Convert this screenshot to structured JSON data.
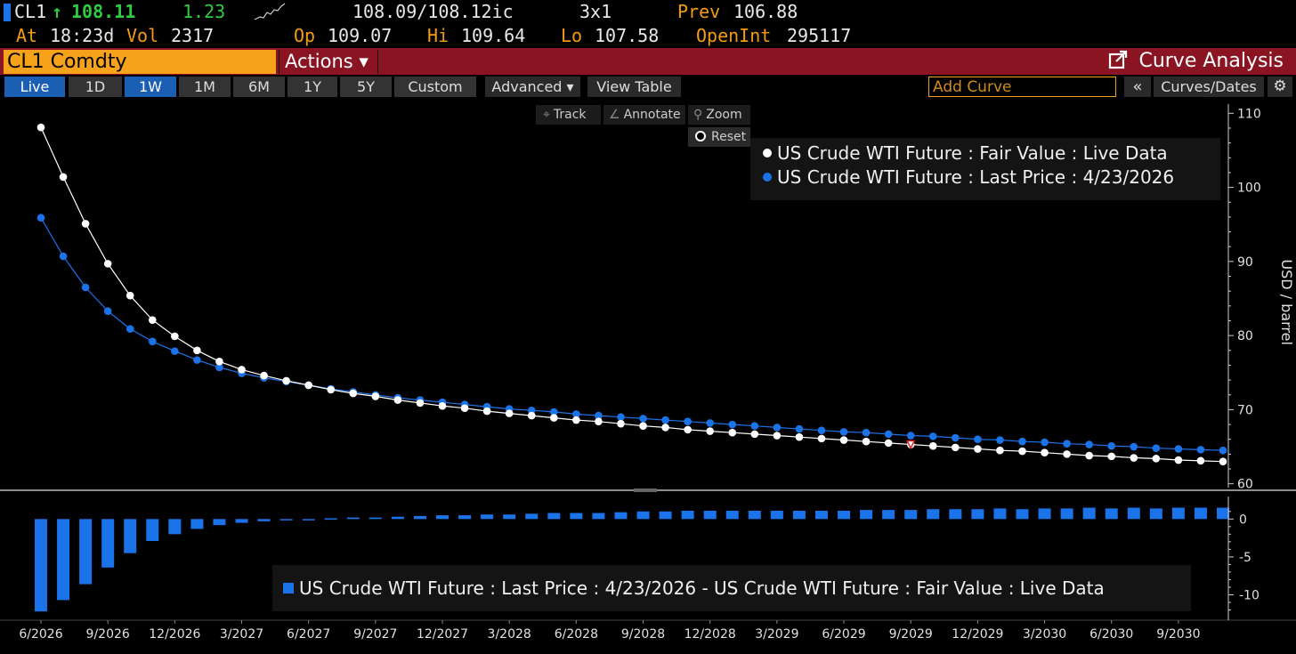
{
  "ticker": {
    "symbol": "CL1",
    "arrow": "↑",
    "last": "108.11",
    "change": "1.23",
    "bid_ask": "108.09/108.12ic",
    "size": "3x1",
    "prev_label": "Prev",
    "prev": "106.88",
    "at_label": "At",
    "time": "18:23d",
    "vol_label": "Vol",
    "vol": "2317",
    "op_label": "Op",
    "op": "109.07",
    "hi_label": "Hi",
    "hi": "109.64",
    "lo_label": "Lo",
    "lo": "107.58",
    "oi_label": "OpenInt",
    "oi": "295117"
  },
  "security": "CL1 Comdty",
  "actions_label": "Actions ▾",
  "function_title": "Curve Analysis",
  "toolbar": {
    "ranges": [
      "Live",
      "1D",
      "1W",
      "1M",
      "6M",
      "1Y",
      "5Y",
      "Custom"
    ],
    "active_ranges": [
      "Live",
      "1W"
    ],
    "advanced": "Advanced ▾",
    "view_table": "View Table",
    "add_curve_placeholder": "Add Curve",
    "collapse": "«",
    "curves_dates": "Curves/Dates",
    "settings_icon": "gear-icon"
  },
  "chart_tools": {
    "track": "Track",
    "annotate": "Annotate",
    "zoom": "Zoom",
    "reset": "Reset"
  },
  "legend": {
    "fair_value": "US Crude WTI Future : Fair Value : Live Data",
    "last_price": "US Crude WTI Future : Last Price : 4/23/2026",
    "spread": "US Crude WTI Future : Last Price : 4/23/2026 - US Crude WTI Future : Fair Value : Live Data"
  },
  "colors": {
    "fair_value": "#ffffff",
    "last_price": "#1a73e8",
    "accent": "#f7a21b",
    "header": "#8a1421"
  },
  "chart_data": {
    "type": "line",
    "x_ticks": [
      "6/2026",
      "9/2026",
      "12/2026",
      "3/2027",
      "6/2027",
      "9/2027",
      "12/2027",
      "3/2028",
      "6/2028",
      "9/2028",
      "12/2028",
      "3/2029",
      "6/2029",
      "9/2029",
      "12/2029",
      "3/2030",
      "6/2030",
      "9/2030"
    ],
    "ylabel": "USD / barrel",
    "ylim": [
      59,
      111
    ],
    "y_ticks": [
      60,
      70,
      80,
      90,
      100,
      110
    ],
    "series": [
      {
        "name": "US Crude WTI Future : Fair Value : Live Data",
        "values": [
          108.1,
          101.4,
          95.1,
          89.7,
          85.4,
          82.1,
          79.9,
          78.0,
          76.5,
          75.4,
          74.6,
          73.9,
          73.3,
          72.7,
          72.2,
          71.8,
          71.3,
          70.9,
          70.5,
          70.2,
          69.8,
          69.5,
          69.2,
          68.9,
          68.6,
          68.4,
          68.1,
          67.8,
          67.6,
          67.3,
          67.1,
          66.9,
          66.7,
          66.5,
          66.3,
          66.1,
          65.9,
          65.7,
          65.5,
          65.3,
          65.1,
          64.9,
          64.7,
          64.5,
          64.4,
          64.2,
          64.0,
          63.8,
          63.7,
          63.5,
          63.4,
          63.2,
          63.1,
          63.0
        ]
      },
      {
        "name": "US Crude WTI Future : Last Price : 4/23/2026",
        "values": [
          95.9,
          90.7,
          86.5,
          83.3,
          80.9,
          79.2,
          77.9,
          76.7,
          75.7,
          74.9,
          74.3,
          73.8,
          73.3,
          72.8,
          72.4,
          72.0,
          71.6,
          71.3,
          71.0,
          70.7,
          70.4,
          70.1,
          69.9,
          69.7,
          69.4,
          69.2,
          69.0,
          68.8,
          68.6,
          68.4,
          68.2,
          68.0,
          67.8,
          67.6,
          67.4,
          67.2,
          67.0,
          66.9,
          66.7,
          66.5,
          66.4,
          66.2,
          66.0,
          65.9,
          65.7,
          65.6,
          65.4,
          65.3,
          65.1,
          65.0,
          64.8,
          64.7,
          64.6,
          64.5
        ]
      },
      {
        "name": "US Crude WTI Future : Last Price : 4/23/2026 - US Crude WTI Future : Fair Value : Live Data",
        "type": "bar",
        "values": [
          -12.2,
          -10.7,
          -8.6,
          -6.4,
          -4.5,
          -2.9,
          -2.0,
          -1.3,
          -0.8,
          -0.5,
          -0.3,
          -0.1,
          0.0,
          0.1,
          0.2,
          0.2,
          0.3,
          0.4,
          0.5,
          0.5,
          0.6,
          0.6,
          0.7,
          0.8,
          0.8,
          0.8,
          0.9,
          1.0,
          1.0,
          1.1,
          1.1,
          1.1,
          1.1,
          1.1,
          1.1,
          1.1,
          1.1,
          1.2,
          1.2,
          1.2,
          1.3,
          1.3,
          1.3,
          1.4,
          1.3,
          1.4,
          1.4,
          1.5,
          1.4,
          1.5,
          1.4,
          1.5,
          1.5,
          1.5
        ],
        "ylim": [
          -13,
          1.8
        ],
        "y_ticks": [
          0,
          -5,
          -10
        ]
      }
    ]
  }
}
